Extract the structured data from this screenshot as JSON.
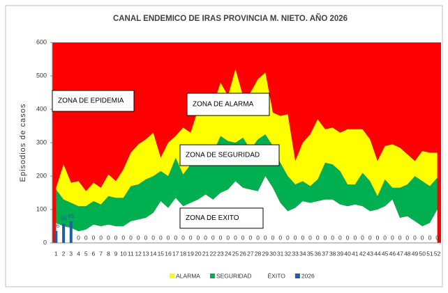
{
  "chart_data": {
    "type": "stacked_area",
    "title": "CANAL ENDEMICO DE IRAS PROVINCIA M. NIETO. AÑO 2026",
    "y_label": "Episodios de casos",
    "categories": [
      "1",
      "2",
      "3",
      "4",
      "5",
      "6",
      "7",
      "8",
      "9",
      "10",
      "11",
      "12",
      "13",
      "14",
      "15",
      "16",
      "17",
      "18",
      "19",
      "20",
      "21",
      "22",
      "23",
      "24",
      "25",
      "26",
      "27",
      "28",
      "29",
      "30",
      "31",
      "32",
      "33",
      "34",
      "35",
      "36",
      "37",
      "38",
      "39",
      "40",
      "41",
      "42",
      "43",
      "44",
      "45",
      "46",
      "47",
      "48",
      "49",
      "50",
      "51",
      "52"
    ],
    "ylim": [
      0,
      600
    ],
    "yticks": [
      0,
      100,
      200,
      300,
      400,
      500,
      600
    ],
    "background_color": "#ff0000",
    "annotations": [
      "ZONA DE EPIDEMIA",
      "ZONA DE ALARMA",
      "ZONA DE SEGURIDAD",
      "ZONA DE EXITO"
    ],
    "series": [
      {
        "name": "ÉXITO",
        "color": "#ffffff",
        "values": [
          60,
          50,
          45,
          35,
          40,
          55,
          50,
          55,
          50,
          50,
          65,
          70,
          75,
          90,
          125,
          105,
          135,
          110,
          120,
          130,
          145,
          130,
          150,
          160,
          185,
          165,
          160,
          155,
          200,
          165,
          120,
          95,
          105,
          125,
          120,
          125,
          130,
          130,
          115,
          110,
          115,
          110,
          95,
          100,
          110,
          130,
          75,
          80,
          65,
          50,
          60,
          100
        ]
      },
      {
        "name": "SEGURIDAD",
        "color": "#00b050",
        "values": [
          100,
          80,
          75,
          75,
          70,
          70,
          65,
          85,
          85,
          85,
          105,
          105,
          115,
          110,
          90,
          95,
          120,
          95,
          115,
          125,
          125,
          140,
          170,
          145,
          115,
          150,
          120,
          155,
          125,
          125,
          120,
          105,
          70,
          60,
          50,
          65,
          110,
          105,
          100,
          65,
          60,
          100,
          90,
          40,
          80,
          35,
          90,
          95,
          135,
          135,
          110,
          95
        ]
      },
      {
        "name": "ALARMA",
        "color": "#ffff00",
        "values": [
          5,
          105,
          60,
          75,
          45,
          55,
          50,
          65,
          50,
          85,
          100,
          120,
          120,
          130,
          40,
          100,
          65,
          140,
          95,
          145,
          120,
          140,
          160,
          135,
          220,
          125,
          170,
          180,
          185,
          100,
          140,
          185,
          70,
          115,
          155,
          180,
          100,
          110,
          115,
          165,
          165,
          130,
          125,
          105,
          100,
          130,
          120,
          90,
          45,
          90,
          100,
          75
        ]
      },
      {
        "name": "2026",
        "color": "#1f5fa8",
        "type": "bar",
        "values": [
          36,
          58,
          65,
          0,
          0,
          0,
          0,
          0,
          0,
          0,
          0,
          0,
          0,
          0,
          0,
          0,
          0,
          0,
          0,
          0,
          0,
          0,
          0,
          0,
          0,
          0,
          0,
          0,
          0,
          0,
          0,
          0,
          0,
          0,
          0,
          0,
          0,
          0,
          0,
          0,
          0,
          0,
          0,
          0,
          0,
          0,
          0,
          0,
          0,
          0,
          0,
          0
        ]
      }
    ],
    "legend_order": [
      2,
      1,
      0,
      3
    ]
  }
}
